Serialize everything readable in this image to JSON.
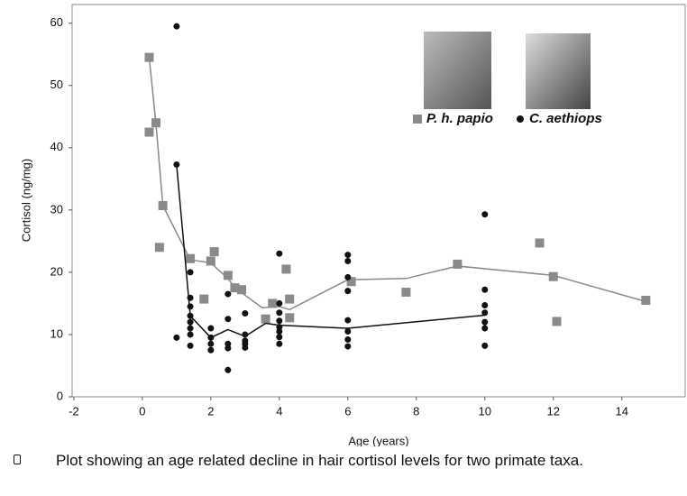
{
  "chart_data": {
    "type": "scatter",
    "x_label": "Age (years)",
    "y_label": "Cortisol (ng/mg)",
    "xlim": [
      -2.05,
      15.85
    ],
    "ylim": [
      0,
      63
    ],
    "xticks": [
      -2,
      0,
      2,
      4,
      6,
      8,
      10,
      12,
      14
    ],
    "yticks": [
      0,
      10,
      20,
      30,
      40,
      50,
      60
    ],
    "series": [
      {
        "name": "P. h. papio",
        "color": "#8a8a8a",
        "marker": "square",
        "x": [
          0.2,
          0.2,
          0.4,
          0.6,
          0.5,
          1.4,
          1.8,
          2,
          2.1,
          2.5,
          2.7,
          2.9,
          3.6,
          3.8,
          4.2,
          4.3,
          4.3,
          6.1,
          7.7,
          9.2,
          11.6,
          12,
          12.1,
          14.7
        ],
        "values": [
          54.5,
          42.5,
          44,
          30.7,
          24,
          22.2,
          15.7,
          21.8,
          23.3,
          19.5,
          17.5,
          17.2,
          12.5,
          15,
          20.5,
          15.7,
          12.7,
          18.5,
          16.8,
          21.3,
          24.7,
          19.3,
          12.1,
          15.5
        ],
        "line_x": [
          0.2,
          0.4,
          0.6,
          1.4,
          2,
          2.5,
          2.7,
          3.5,
          4,
          4.3,
          6,
          7.7,
          9.2,
          12,
          14.7
        ],
        "line_values": [
          54.5,
          43.7,
          30.7,
          22,
          21.5,
          19,
          17.5,
          14.3,
          14.5,
          14,
          18.8,
          19,
          21,
          19.5,
          15.3
        ]
      },
      {
        "name": "C. aethiops",
        "color": "#111111",
        "marker": "circle",
        "x": [
          1,
          1,
          1,
          1.4,
          1.4,
          1.4,
          1.4,
          1.4,
          1.4,
          1.4,
          1.4,
          2,
          2,
          2,
          2,
          2.5,
          2.5,
          2.5,
          2.5,
          2.5,
          3,
          3,
          3,
          3,
          3,
          4,
          4,
          4,
          4,
          4,
          4,
          4,
          4,
          6,
          6,
          6,
          6,
          6,
          6,
          6,
          6,
          10,
          10,
          10,
          10,
          10,
          10,
          10
        ],
        "values": [
          59.5,
          37.3,
          9.5,
          20,
          15.9,
          14.5,
          13,
          12,
          11,
          10,
          8.2,
          11,
          9.5,
          8.5,
          7.5,
          16.5,
          12.5,
          8.5,
          7.8,
          4.3,
          13.4,
          10,
          9,
          8.5,
          7.9,
          23,
          15,
          13.5,
          12.2,
          11.2,
          10.5,
          9.6,
          8.5,
          22.8,
          21.8,
          19.2,
          17,
          12.3,
          10.5,
          9.2,
          8.1,
          29.3,
          17.2,
          14.7,
          13.5,
          12,
          11,
          8.2
        ],
        "line_x": [
          1,
          1.4,
          2,
          2.5,
          3,
          3.6,
          4,
          6,
          10
        ],
        "line_values": [
          37.3,
          13,
          9.5,
          10.8,
          9.7,
          11.8,
          11.5,
          11,
          13.1
        ]
      }
    ]
  },
  "caption": "Plot showing an age related decline in hair cortisol levels for two primate taxa."
}
